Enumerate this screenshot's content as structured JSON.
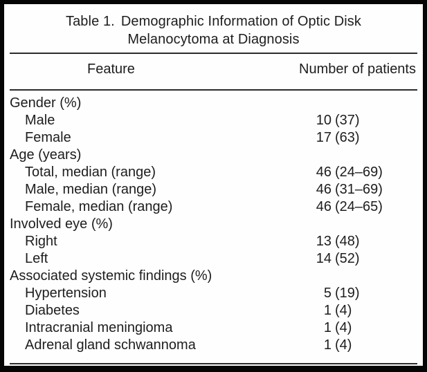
{
  "table": {
    "title_prefix": "Table 1.",
    "title_rest": "Demographic Information of Optic Disk",
    "title_line2": "Melanocytoma at Diagnosis",
    "columns": {
      "feature": "Feature",
      "patients": "Number of patients"
    },
    "rows": [
      {
        "label": "Gender (%)",
        "indent": false,
        "num": "",
        "paren": ""
      },
      {
        "label": "Male",
        "indent": true,
        "num": "10",
        "paren": "(37)"
      },
      {
        "label": "Female",
        "indent": true,
        "num": "17",
        "paren": "(63)"
      },
      {
        "label": "Age (years)",
        "indent": false,
        "num": "",
        "paren": ""
      },
      {
        "label": "Total, median (range)",
        "indent": true,
        "num": "46",
        "paren": "(24–69)"
      },
      {
        "label": "Male, median (range)",
        "indent": true,
        "num": "46",
        "paren": "(31–69)"
      },
      {
        "label": "Female, median (range)",
        "indent": true,
        "num": "46",
        "paren": "(24–65)"
      },
      {
        "label": "Involved eye (%)",
        "indent": false,
        "num": "",
        "paren": ""
      },
      {
        "label": "Right",
        "indent": true,
        "num": "13",
        "paren": "(48)"
      },
      {
        "label": "Left",
        "indent": true,
        "num": "14",
        "paren": "(52)"
      },
      {
        "label": "Associated systemic findings (%)",
        "indent": false,
        "num": "",
        "paren": ""
      },
      {
        "label": "Hypertension",
        "indent": true,
        "num": "5",
        "paren": "(19)"
      },
      {
        "label": "Diabetes",
        "indent": true,
        "num": "1",
        "paren": "(4)"
      },
      {
        "label": "Intracranial meningioma",
        "indent": true,
        "num": "1",
        "paren": "(4)"
      },
      {
        "label": "Adrenal gland schwannoma",
        "indent": true,
        "num": "1",
        "paren": "(4)"
      }
    ]
  },
  "colors": {
    "text": "#1d1d1f",
    "rule": "#2b2b2b",
    "frame": "#050505",
    "background": "#fefefe"
  }
}
